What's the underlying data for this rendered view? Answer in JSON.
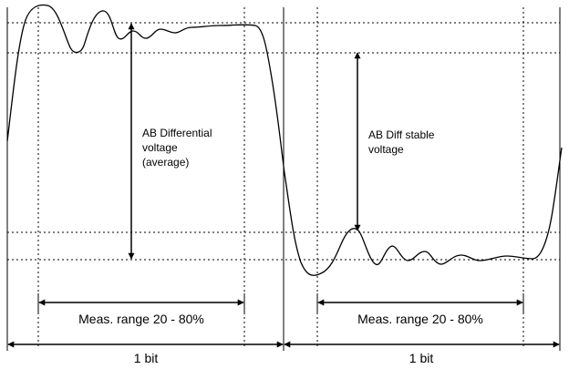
{
  "labels": {
    "amplitude_average": [
      "AB Differential",
      "voltage",
      "(average)"
    ],
    "amplitude_stable": [
      "AB Diff stable",
      "voltage"
    ],
    "meas_range_left": "Meas. range 20 - 80%",
    "meas_range_right": "Meas. range 20 - 80%",
    "bit_left": "1 bit",
    "bit_right": "1 bit"
  }
}
